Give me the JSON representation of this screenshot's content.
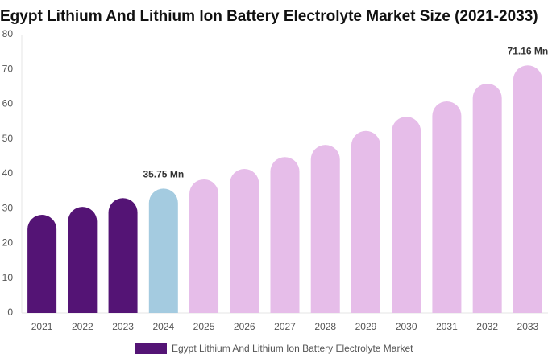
{
  "chart_data": {
    "type": "bar",
    "title": "Egypt Lithium And Lithium Ion Battery Electrolyte Market Size (2021-2033)",
    "categories": [
      "2021",
      "2022",
      "2023",
      "2024",
      "2025",
      "2026",
      "2027",
      "2028",
      "2029",
      "2030",
      "2031",
      "2032",
      "2033"
    ],
    "series": [
      {
        "name": "Egypt Lithium And Lithium Ion Battery Electrolyte Market",
        "color": "#541475",
        "values": [
          28.2,
          30.5,
          33.0,
          35.75,
          38.4,
          41.4,
          44.8,
          48.3,
          52.3,
          56.4,
          60.8,
          65.9,
          71.16
        ],
        "value_labels": [
          null,
          null,
          null,
          "35.75 Mn",
          null,
          null,
          null,
          null,
          null,
          null,
          null,
          null,
          "71.16 Mn"
        ],
        "colors": [
          "#541475",
          "#541475",
          "#541475",
          "#a4cbe0",
          "#e6bde9",
          "#e6bde9",
          "#e6bde9",
          "#e6bde9",
          "#e6bde9",
          "#e6bde9",
          "#e6bde9",
          "#e6bde9",
          "#e6bde9"
        ]
      }
    ],
    "ylim": [
      0,
      80
    ],
    "yticks": [
      0,
      10,
      20,
      30,
      40,
      50,
      60,
      70,
      80
    ]
  }
}
